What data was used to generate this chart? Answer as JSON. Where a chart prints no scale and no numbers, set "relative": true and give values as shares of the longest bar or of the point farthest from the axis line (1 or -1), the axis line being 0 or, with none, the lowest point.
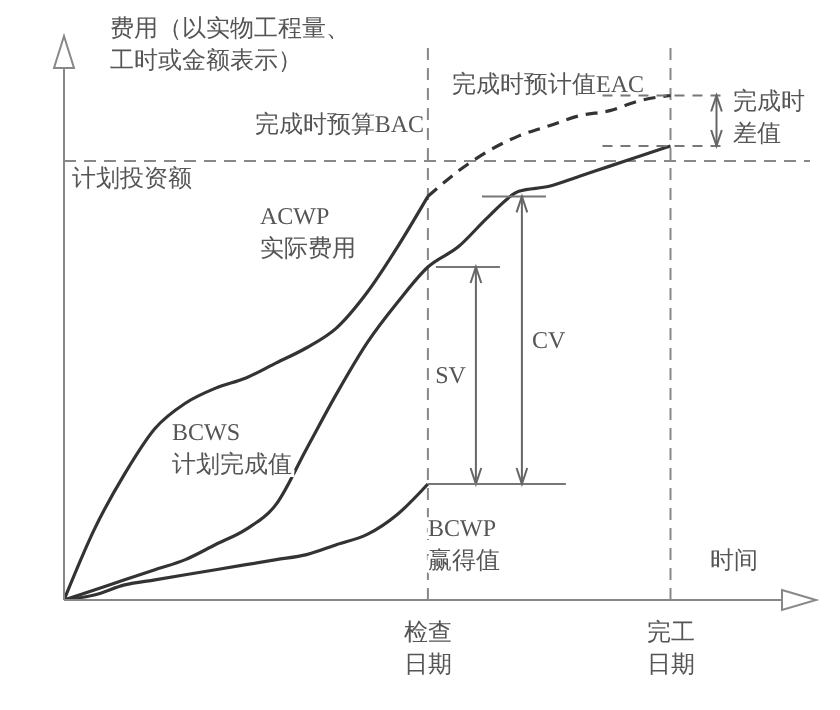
{
  "chart_data": {
    "type": "line",
    "relative": true,
    "ylabel": "费用（以实物工程量、工时或金额表示）",
    "xlabel": "时间",
    "line_style": "solid",
    "marker": "none",
    "categories": [
      null,
      null,
      null,
      null,
      null,
      null,
      null,
      null,
      null,
      null,
      null,
      null,
      "检查日期",
      null,
      null,
      null,
      null,
      null,
      null,
      null,
      "完工日期",
      null,
      null,
      null,
      null
    ],
    "series": [
      {
        "name": "ACWP\n实际费用",
        "color": "#333333",
        "values": [
          0,
          0.14,
          0.25,
          0.34,
          0.39,
          0.42,
          0.44,
          0.47,
          0.5,
          0.54,
          0.61,
          0.7,
          0.8,
          null,
          null,
          null,
          null,
          null,
          null,
          null,
          null,
          null,
          null,
          null,
          null
        ]
      },
      {
        "color": "#333333",
        "line_style": "dashed",
        "values": [
          null,
          null,
          null,
          null,
          null,
          null,
          null,
          null,
          null,
          null,
          null,
          null,
          0.8,
          0.85,
          0.89,
          0.92,
          0.94,
          0.96,
          0.97,
          0.99,
          1,
          null,
          null,
          null,
          null
        ]
      },
      {
        "name": "BCWS\n计划完成值",
        "color": "#333333",
        "values": [
          0,
          0.02,
          0.04,
          0.06,
          0.08,
          0.11,
          0.14,
          0.19,
          0.3,
          0.41,
          0.51,
          0.59,
          0.66,
          0.7,
          0.76,
          0.81,
          0.82,
          0.84,
          0.86,
          0.88,
          0.9,
          null,
          null,
          null,
          null
        ]
      },
      {
        "name": "BCWP\n赢得值",
        "color": "#333333",
        "values": [
          0,
          0.01,
          0.03,
          0.04,
          0.05,
          0.06,
          0.07,
          0.08,
          0.09,
          0.11,
          0.13,
          0.17,
          0.23,
          null,
          null,
          null,
          null,
          null,
          null,
          null,
          null,
          null,
          null,
          null,
          null
        ]
      }
    ],
    "ref_lines": [
      {
        "axis": "y",
        "value": 0.87,
        "label": "计划投资额",
        "line_style": "dashed",
        "color": "#888888"
      }
    ],
    "annotations": [
      "完成时预计值EAC",
      "完成时预算BAC",
      "SV",
      "CV",
      "完成时差值"
    ]
  }
}
